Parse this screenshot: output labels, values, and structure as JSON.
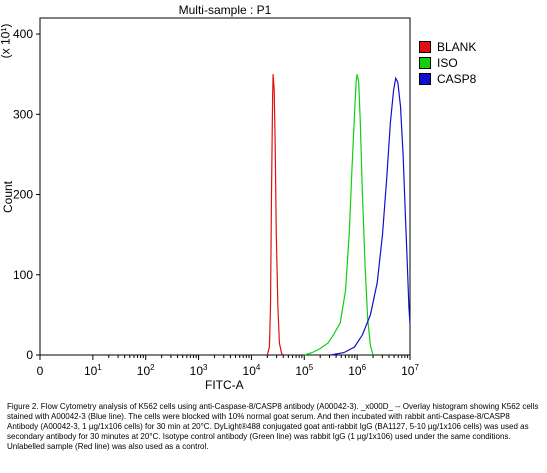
{
  "chart_data": {
    "type": "line",
    "title": "Multi-sample : P1",
    "xlabel": "FITC-A",
    "ylabel": "Count",
    "y_multiplier": "(x 10¹)",
    "x_scale": "log",
    "xlim_decades": [
      0,
      7
    ],
    "ylim": [
      0,
      420
    ],
    "x_ticks": [
      {
        "value": 0,
        "label": "0"
      },
      {
        "value": 1,
        "base": "10",
        "exp": "1"
      },
      {
        "value": 2,
        "base": "10",
        "exp": "2"
      },
      {
        "value": 3,
        "base": "10",
        "exp": "3"
      },
      {
        "value": 4,
        "base": "10",
        "exp": "4"
      },
      {
        "value": 5,
        "base": "10",
        "exp": "5"
      },
      {
        "value": 6,
        "base": "10",
        "exp": "6"
      },
      {
        "value": 7,
        "base": "10",
        "exp": "7"
      }
    ],
    "y_ticks": [
      0,
      100,
      200,
      300,
      400
    ],
    "grid": false,
    "legend_position": "top-right",
    "series": [
      {
        "name": "BLANK",
        "color": "#e01010",
        "points": [
          [
            4.3,
            0
          ],
          [
            4.34,
            10
          ],
          [
            4.36,
            60
          ],
          [
            4.38,
            200
          ],
          [
            4.4,
            320
          ],
          [
            4.41,
            350
          ],
          [
            4.43,
            330
          ],
          [
            4.45,
            260
          ],
          [
            4.47,
            150
          ],
          [
            4.5,
            60
          ],
          [
            4.53,
            15
          ],
          [
            4.57,
            2
          ],
          [
            4.6,
            0
          ]
        ]
      },
      {
        "name": "ISO",
        "color": "#10d010",
        "points": [
          [
            5.0,
            0
          ],
          [
            5.15,
            3
          ],
          [
            5.3,
            8
          ],
          [
            5.45,
            15
          ],
          [
            5.55,
            25
          ],
          [
            5.68,
            40
          ],
          [
            5.78,
            80
          ],
          [
            5.85,
            150
          ],
          [
            5.9,
            230
          ],
          [
            5.95,
            300
          ],
          [
            5.98,
            340
          ],
          [
            6.0,
            350
          ],
          [
            6.03,
            340
          ],
          [
            6.06,
            290
          ],
          [
            6.1,
            200
          ],
          [
            6.15,
            110
          ],
          [
            6.2,
            45
          ],
          [
            6.25,
            12
          ],
          [
            6.3,
            0
          ]
        ]
      },
      {
        "name": "CASP8",
        "color": "#1010d0",
        "points": [
          [
            5.5,
            0
          ],
          [
            5.75,
            3
          ],
          [
            5.95,
            10
          ],
          [
            6.1,
            25
          ],
          [
            6.25,
            50
          ],
          [
            6.38,
            90
          ],
          [
            6.48,
            150
          ],
          [
            6.56,
            220
          ],
          [
            6.63,
            290
          ],
          [
            6.69,
            330
          ],
          [
            6.73,
            345
          ],
          [
            6.77,
            340
          ],
          [
            6.82,
            310
          ],
          [
            6.87,
            250
          ],
          [
            6.91,
            180
          ],
          [
            6.95,
            110
          ],
          [
            6.98,
            60
          ],
          [
            7.0,
            38
          ]
        ]
      }
    ]
  },
  "caption": "Figure 2. Flow Cytometry analysis of K562 cells using anti-Caspase-8/CASP8 antibody (A00042-3). _x000D_ -- Overlay histogram showing K562 cells stained with A00042-3 (Blue line). The cells were blocked with 10% normal goat serum. And then incubated with rabbit anti-Caspase-8/CASP8 Antibody (A00042-3, 1 µg/1x106 cells) for 30 min at 20°C. DyLight®488 conjugated goat anti-rabbit IgG (BA1127, 5-10 µg/1x106 cells) was used as secondary antibody for 30 minutes at 20°C. Isotype control antibody (Green line) was rabbit IgG (1 µg/1x106) used under the same conditions. Unlabelled sample (Red line) was also used as a control."
}
